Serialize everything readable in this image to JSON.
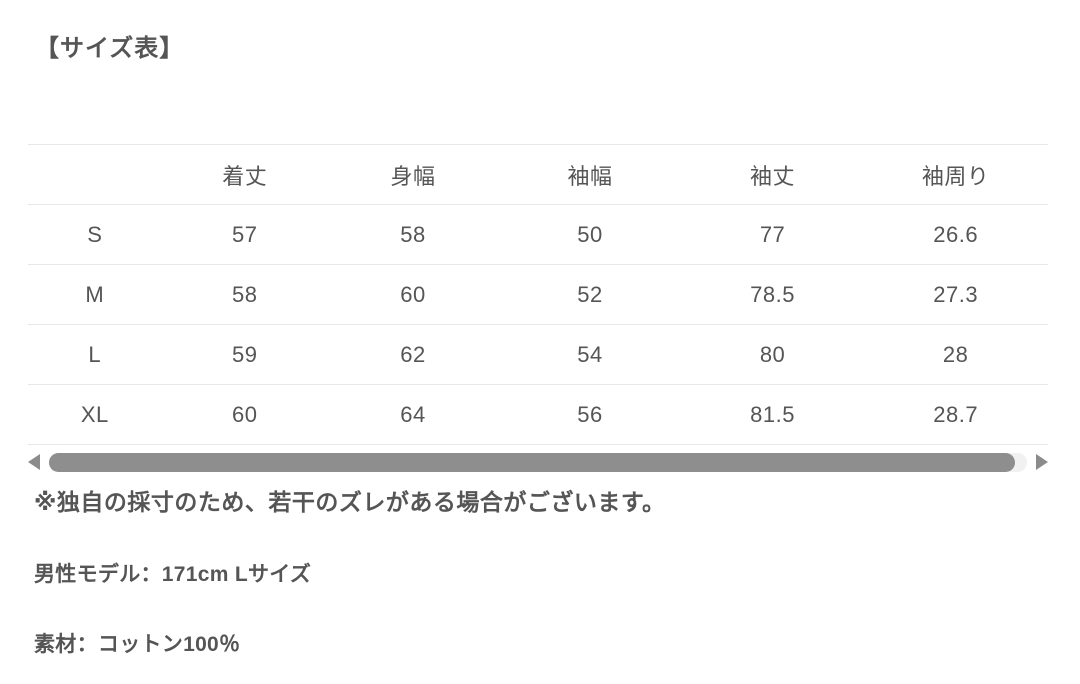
{
  "title": "【サイズ表】",
  "size_table": {
    "columns": [
      "",
      "着丈",
      "身幅",
      "袖幅",
      "袖丈",
      "袖周り"
    ],
    "rows": [
      {
        "size": "S",
        "values": [
          "57",
          "58",
          "50",
          "77",
          "26.6"
        ]
      },
      {
        "size": "M",
        "values": [
          "58",
          "60",
          "52",
          "78.5",
          "27.3"
        ]
      },
      {
        "size": "L",
        "values": [
          "59",
          "62",
          "54",
          "80",
          "28"
        ]
      },
      {
        "size": "XL",
        "values": [
          "60",
          "64",
          "56",
          "81.5",
          "28.7"
        ]
      }
    ]
  },
  "notes": {
    "disclaimer": "※独自の採寸のため、若干のズレがある場合がございます。",
    "model": "男性モデル：171cm Lサイズ",
    "material": "素材：コットン100％"
  },
  "scrollbar": {
    "orientation": "horizontal",
    "thumb_coverage_percent": 99
  },
  "colors": {
    "background": "#ffffff",
    "text": "#555555",
    "table_border": "#e8e8e8",
    "scrollbar_thumb": "#8e8e8e",
    "scrollbar_track": "#f1f1f1",
    "scroll_arrow": "#8b8b8b"
  }
}
